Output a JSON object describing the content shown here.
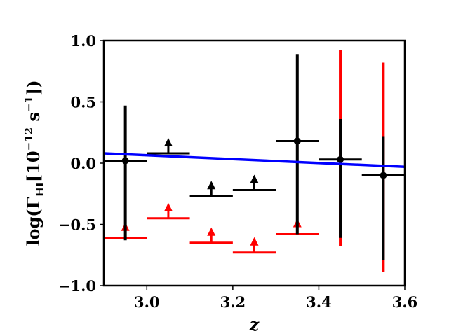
{
  "chart_data": {
    "type": "scatter",
    "xlabel": "z",
    "ylabel_parts": {
      "prefix": "log(Γ",
      "sub": "HI",
      "mid": "[10",
      "sup1": "−12",
      "unit": " s",
      "sup2": "−1",
      "suffix": "])"
    },
    "xlim": [
      2.9,
      3.6
    ],
    "ylim": [
      -1.0,
      1.0
    ],
    "xticks": [
      3.0,
      3.2,
      3.4,
      3.6
    ],
    "xtick_labels": [
      "3.0",
      "3.2",
      "3.4",
      "3.6"
    ],
    "yticks": [
      1.0,
      0.5,
      0.0,
      -0.5,
      -1.0
    ],
    "ytick_labels": [
      "1.0",
      "0.5",
      "0.0",
      "−0.5",
      "−1.0"
    ],
    "grid": false,
    "colors": {
      "black": "#000000",
      "red": "#ff0000",
      "blue": "#0000ff"
    },
    "fit_line": {
      "color": "#0000ff",
      "x": [
        2.9,
        3.6
      ],
      "y": [
        0.08,
        -0.03
      ]
    },
    "series": [
      {
        "color": "#000000",
        "measurements": [
          {
            "x": 2.95,
            "xerr": 0.05,
            "y": 0.02,
            "ylow": -0.63,
            "yhigh": 0.47
          },
          {
            "x": 3.35,
            "xerr": 0.05,
            "y": 0.18,
            "ylow": -0.58,
            "yhigh": 0.89
          },
          {
            "x": 3.45,
            "xerr": 0.05,
            "y": 0.03,
            "ylow": -0.61,
            "yhigh": 0.36
          },
          {
            "x": 3.55,
            "xerr": 0.05,
            "y": -0.1,
            "ylow": -0.79,
            "yhigh": 0.22
          }
        ],
        "lower_limits": [
          {
            "x": 3.05,
            "xerr": 0.05,
            "y": 0.08
          },
          {
            "x": 3.15,
            "xerr": 0.05,
            "y": -0.27
          },
          {
            "x": 3.25,
            "xerr": 0.05,
            "y": -0.22
          }
        ]
      },
      {
        "color": "#ff0000",
        "measurements": [
          {
            "x": 3.45,
            "ylow": -0.68,
            "yhigh": 0.92
          },
          {
            "x": 3.55,
            "ylow": -0.89,
            "yhigh": 0.82
          }
        ],
        "lower_limits": [
          {
            "x": 2.95,
            "xerr": 0.05,
            "y": -0.61
          },
          {
            "x": 3.05,
            "xerr": 0.05,
            "y": -0.45
          },
          {
            "x": 3.15,
            "xerr": 0.05,
            "y": -0.65
          },
          {
            "x": 3.25,
            "xerr": 0.05,
            "y": -0.73
          },
          {
            "x": 3.35,
            "xerr": 0.05,
            "y": -0.58
          }
        ]
      }
    ]
  }
}
